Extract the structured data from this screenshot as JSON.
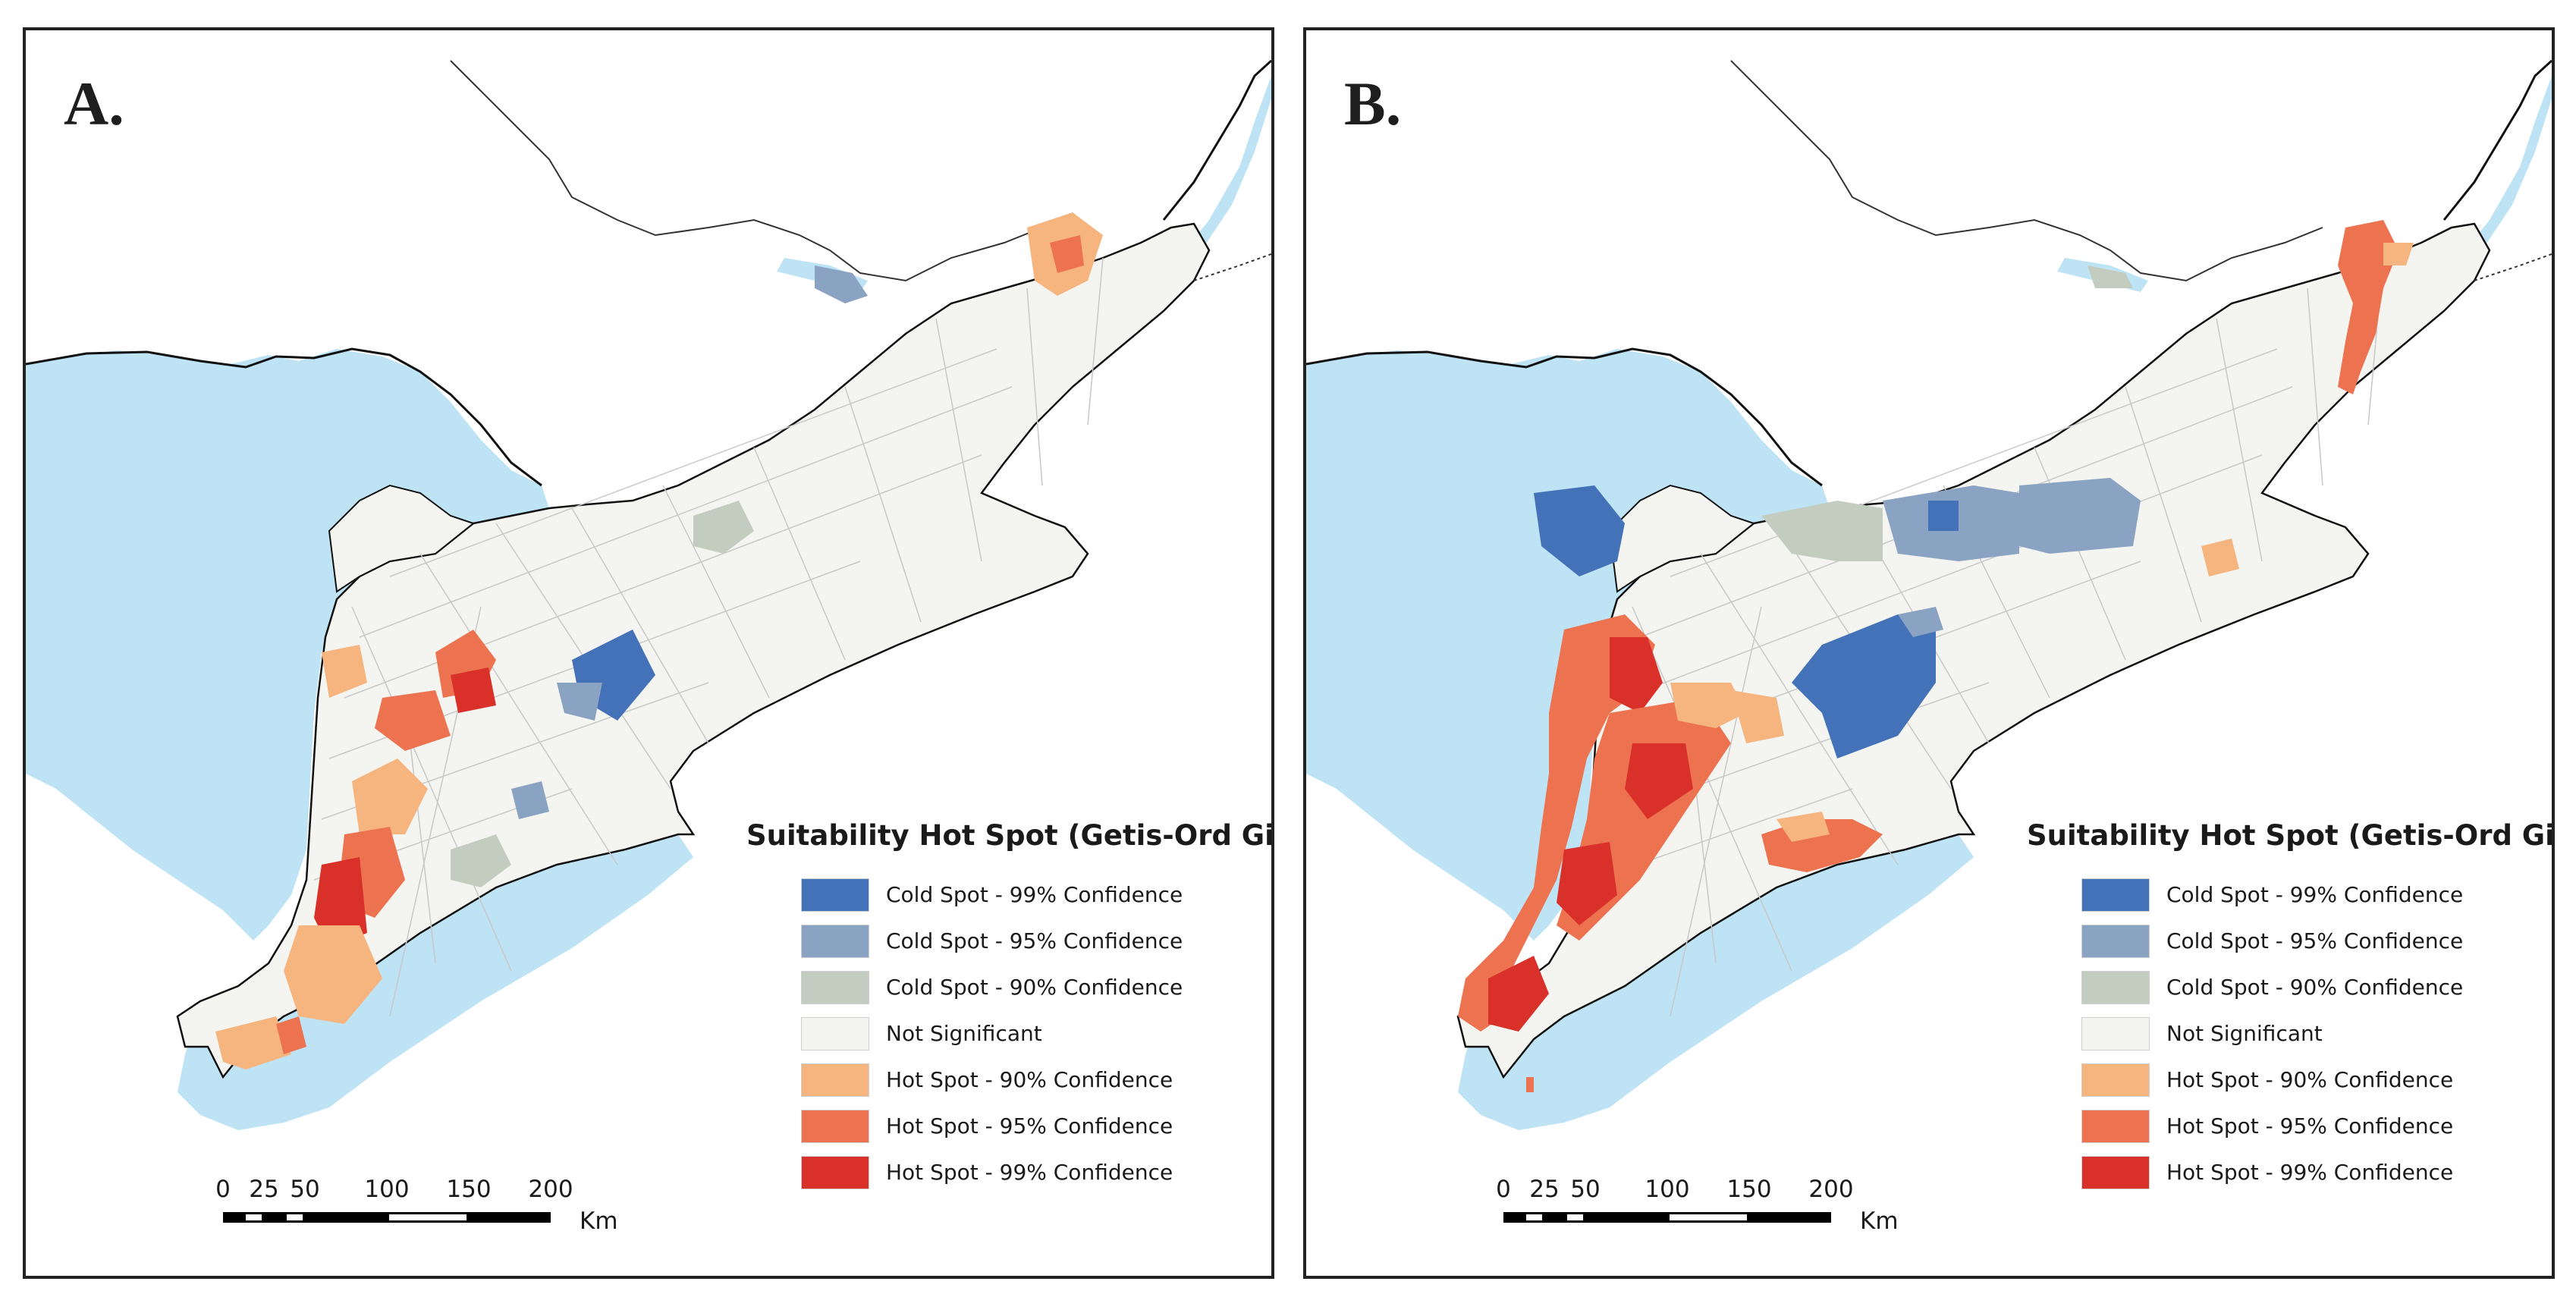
{
  "panels": [
    {
      "label": "A.",
      "legend_title": "Suitability Hot Spot (Getis-Ord Gi*)"
    },
    {
      "label": "B.",
      "legend_title": "Suitability Hot Spot (Getis-Ord Gi*)"
    }
  ],
  "legend": [
    {
      "label": "Cold Spot - 99% Confidence",
      "color": "#4472b8"
    },
    {
      "label": "Cold Spot - 95% Confidence",
      "color": "#8aa3c2"
    },
    {
      "label": "Cold Spot - 90% Confidence",
      "color": "#c3cdbf"
    },
    {
      "label": "Not Significant",
      "color": "#f4f4f1"
    },
    {
      "label": "Hot Spot - 90% Confidence",
      "color": "#f6b47f"
    },
    {
      "label": "Hot Spot - 95% Confidence",
      "color": "#ed7350"
    },
    {
      "label": "Hot Spot - 99% Confidence",
      "color": "#d9302a"
    }
  ],
  "scale": {
    "ticks": [
      "0",
      "25",
      "50",
      "100",
      "150",
      "200"
    ],
    "unit": "Km"
  },
  "colors": {
    "water": "#bde3f5",
    "land": "#f4f4f1",
    "boundary": "#c8c8c8",
    "coast": "#111111"
  }
}
